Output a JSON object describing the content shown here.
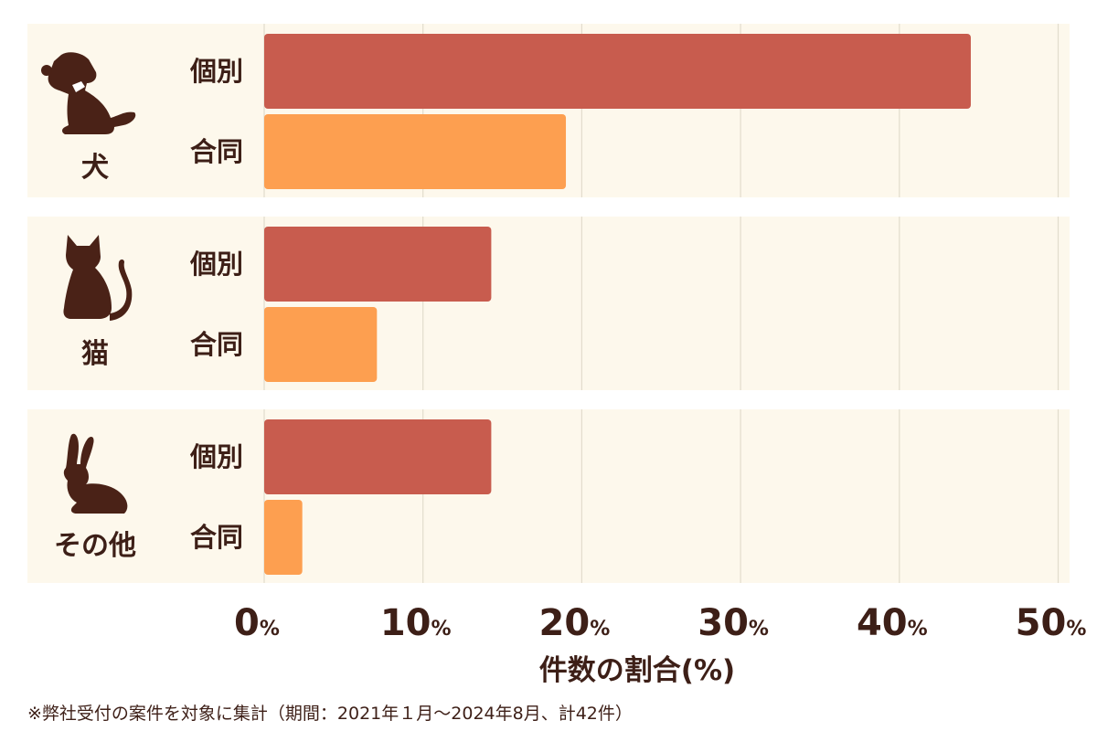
{
  "chart_data": {
    "type": "bar",
    "orientation": "horizontal",
    "categories": [
      "犬",
      "猫",
      "その他"
    ],
    "series": [
      {
        "name": "個別",
        "values": [
          44.5,
          14.3,
          14.3
        ],
        "color": "#c85c4e"
      },
      {
        "name": "合同",
        "values": [
          19.0,
          7.1,
          2.4
        ],
        "color": "#fd9f50"
      }
    ],
    "xlim": [
      0,
      50
    ],
    "xticks": [
      0,
      10,
      20,
      30,
      40,
      50
    ],
    "tick_suffix": "%",
    "xlabel": "件数の割合(%)",
    "grid": true
  },
  "icons": [
    "dog-icon",
    "cat-icon",
    "rabbit-icon"
  ],
  "colors": {
    "panel_bg": "#fdf8ec",
    "grid": "#e2dccd",
    "text": "#3d1f17",
    "icon": "#4a2217"
  },
  "footnote": "※弊社受付の案件を対象に集計（期間：2021年１月〜2024年8月、計42件）"
}
